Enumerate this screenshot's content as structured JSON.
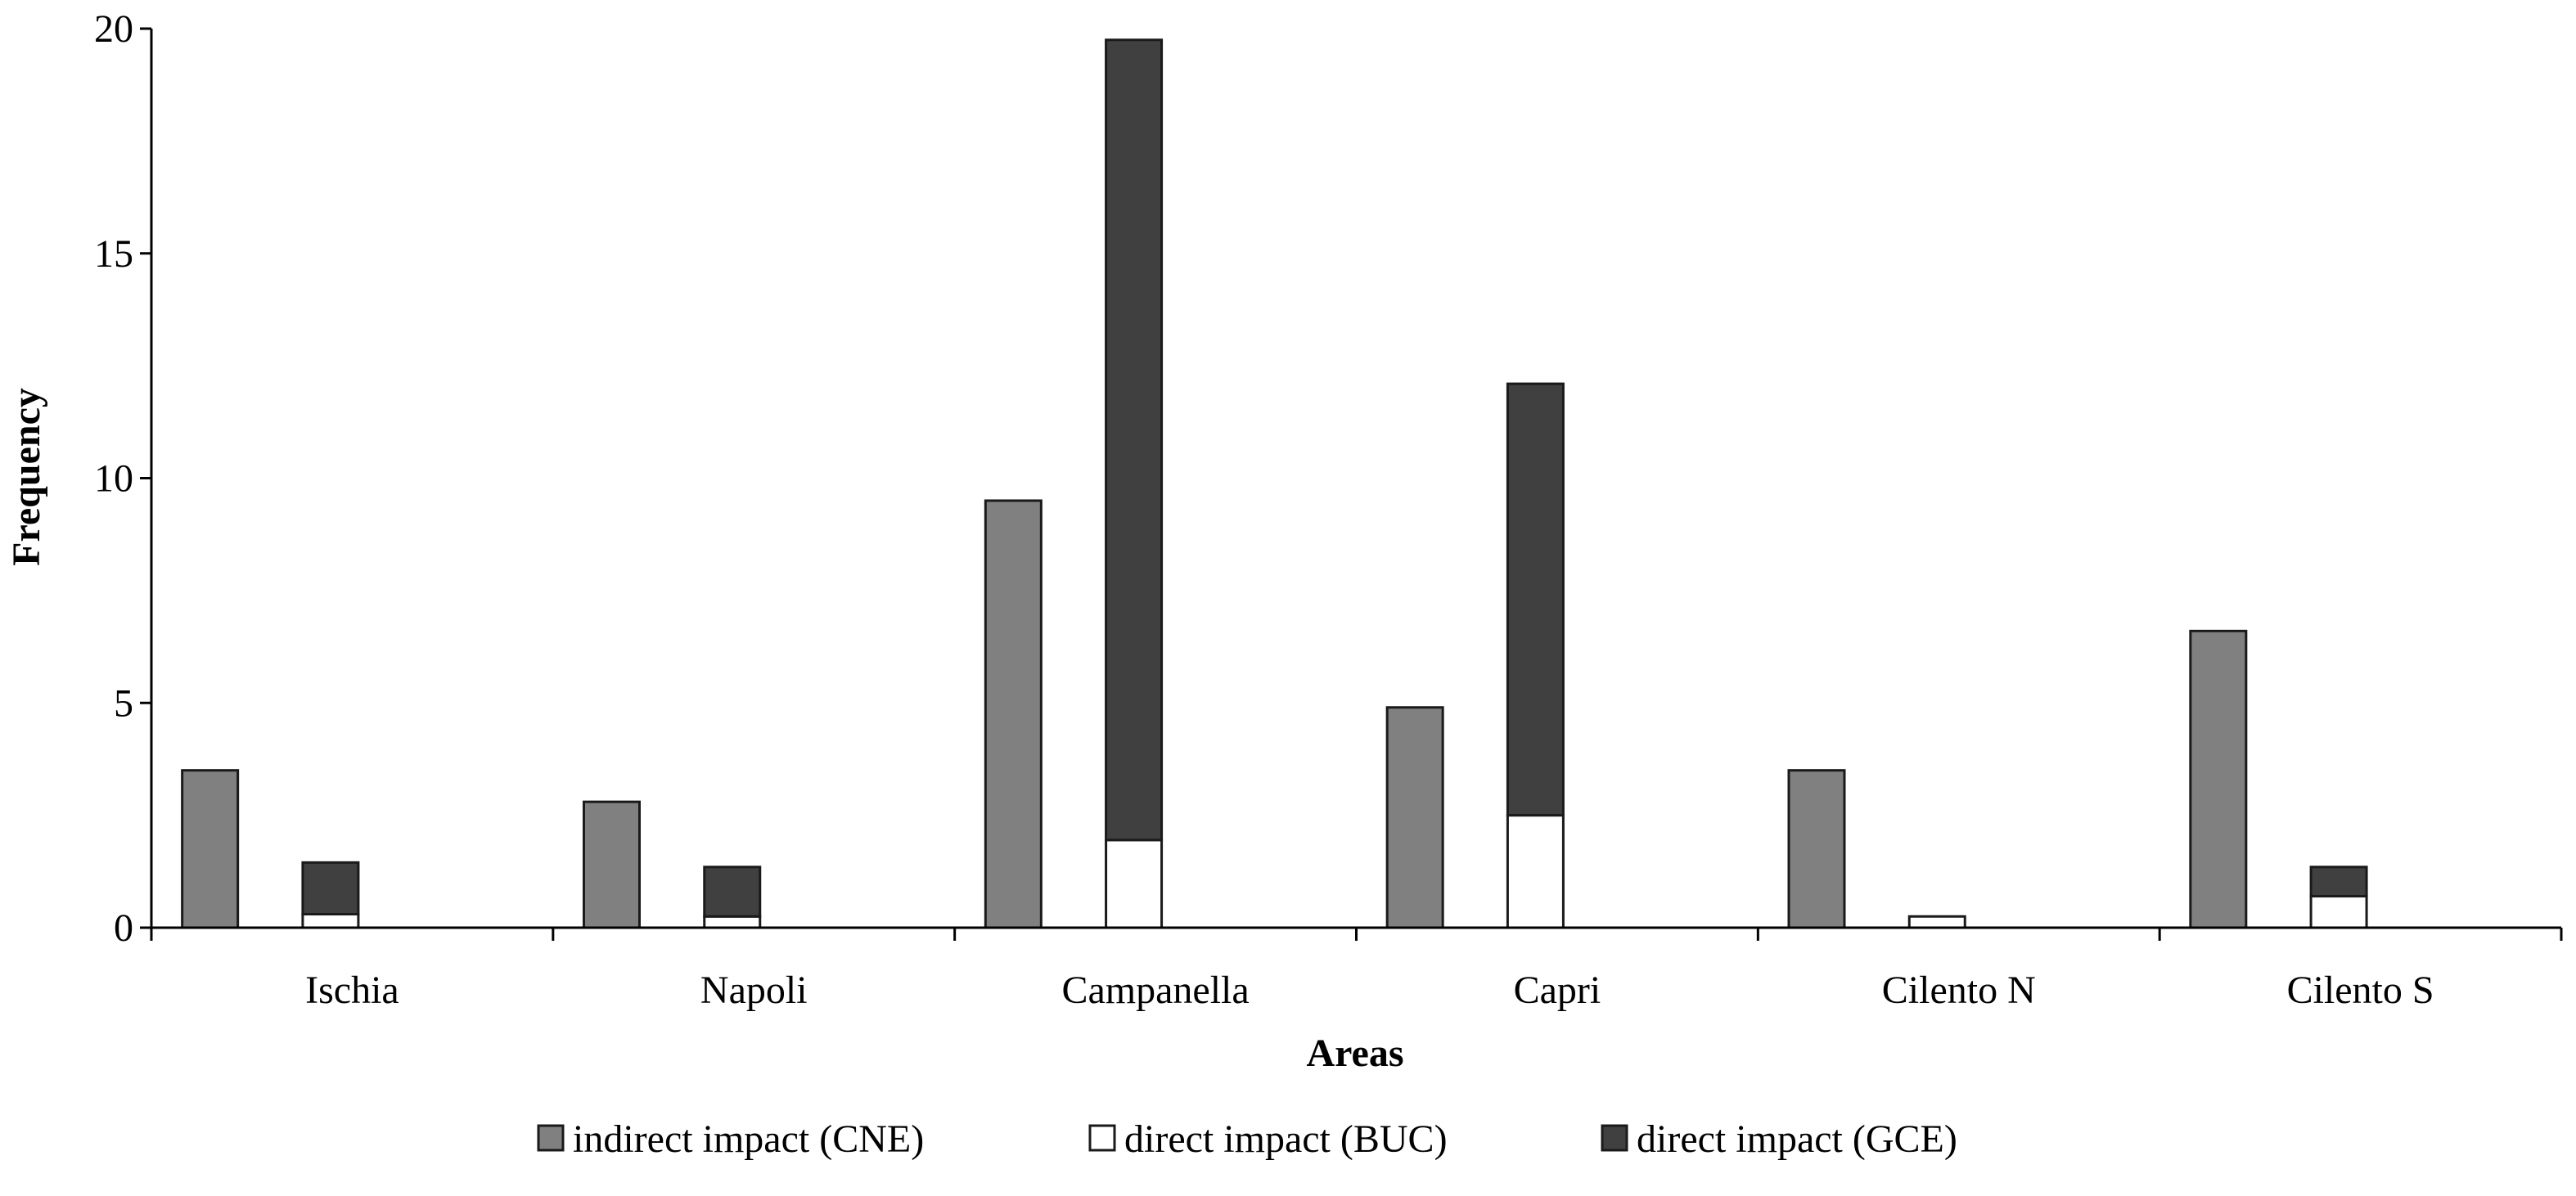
{
  "chart_data": {
    "type": "bar",
    "title": "",
    "xlabel": "Areas",
    "ylabel": "Frequency",
    "ylim": [
      0,
      20
    ],
    "yticks": [
      "0",
      "5",
      "10",
      "15",
      "20"
    ],
    "grid": false,
    "legend_position": "bottom-center",
    "categories": [
      "Ischia",
      "Napoli",
      "Campanella",
      "Capri",
      "Cilento N",
      "Cilento S"
    ],
    "series": [
      {
        "name": "indirect impact (CNE)",
        "color": "#808080",
        "stack": "indirect",
        "values": [
          3.5,
          2.8,
          9.5,
          4.9,
          3.5,
          6.6
        ]
      },
      {
        "name": "direct impact (BUC)",
        "color": "#ffffff",
        "stack": "direct",
        "values": [
          0.3,
          0.25,
          1.95,
          2.5,
          0.25,
          0.7
        ]
      },
      {
        "name": "direct impact (GCE)",
        "color": "#404040",
        "stack": "direct",
        "values": [
          1.15,
          1.1,
          17.8,
          9.6,
          0,
          0.65
        ]
      }
    ]
  }
}
